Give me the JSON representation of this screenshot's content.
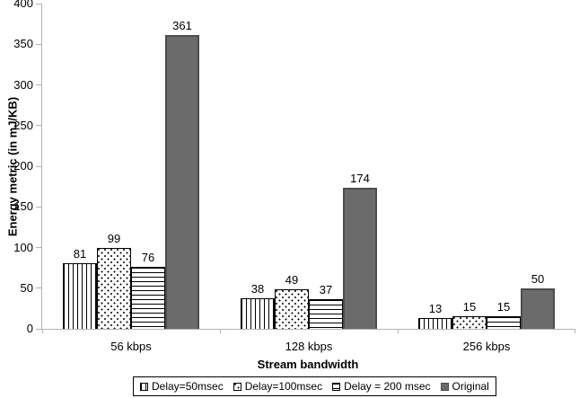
{
  "chart_data": {
    "type": "bar",
    "title": "",
    "xlabel": "Stream bandwidth",
    "ylabel": "Energy metric (in mJ/KB)",
    "categories": [
      "56 kbps",
      "128 kbps",
      "256 kbps"
    ],
    "series": [
      {
        "name": "Delay=50msec",
        "pattern": "vertical-lines",
        "values": [
          81,
          38,
          13
        ]
      },
      {
        "name": "Delay=100msec",
        "pattern": "dots",
        "values": [
          99,
          49,
          15
        ]
      },
      {
        "name": "Delay = 200 msec",
        "pattern": "horizontal-lines",
        "values": [
          76,
          37,
          15
        ]
      },
      {
        "name": "Original",
        "pattern": "solid",
        "values": [
          361,
          174,
          50
        ]
      }
    ],
    "ylim": [
      0,
      400
    ],
    "ytick_step": 50,
    "grid": false,
    "legend_position": "bottom",
    "data_labels": true,
    "colors": {
      "solid_fill": "#6b6b6b",
      "solid_border": "#4d4d4d",
      "axis": "#b3b3b3",
      "pattern_foreground": "#000000",
      "pattern_background": "#ffffff"
    }
  }
}
